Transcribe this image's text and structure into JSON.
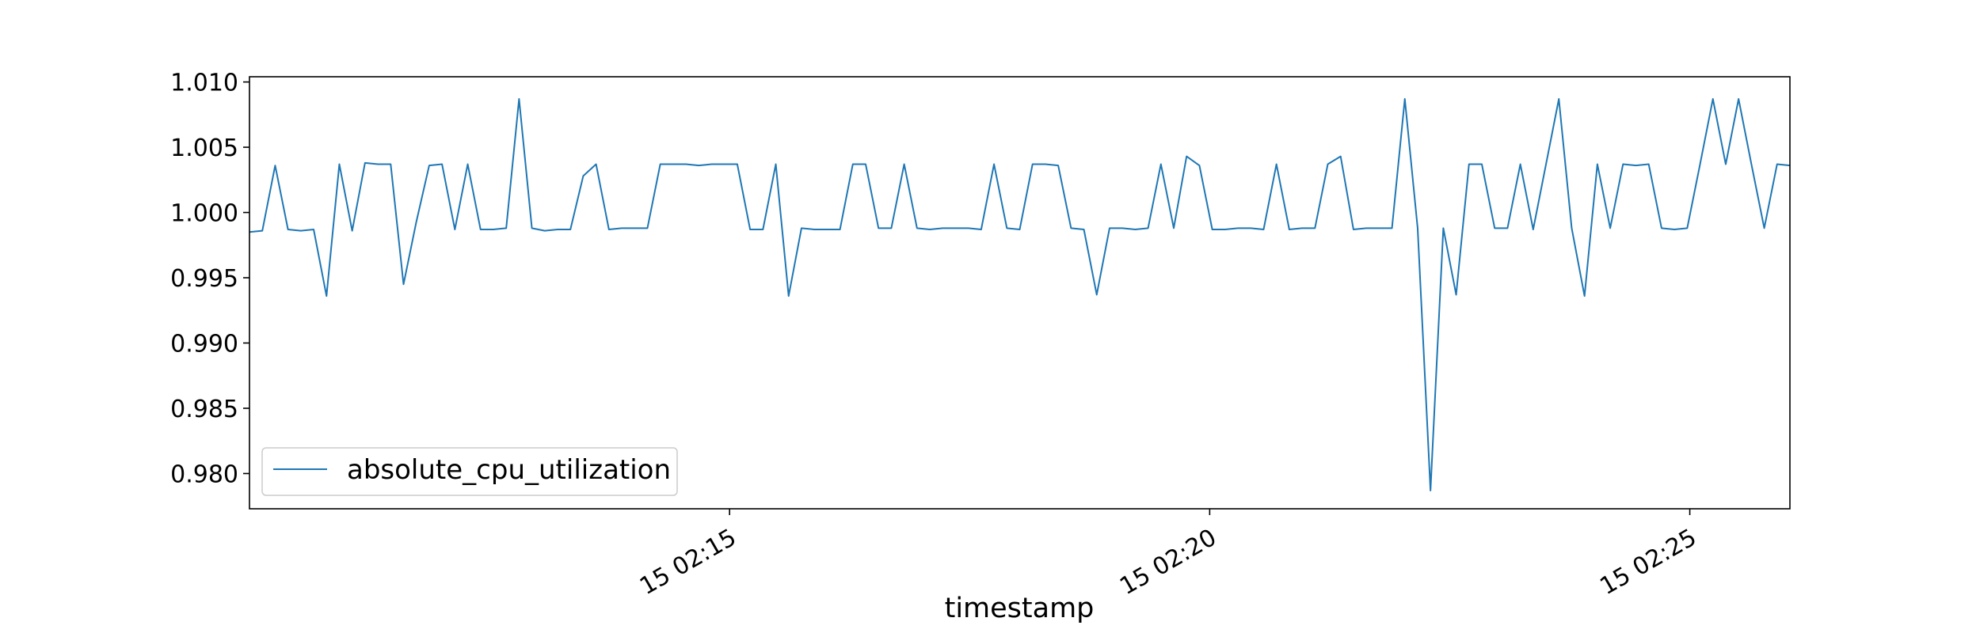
{
  "chart_data": {
    "type": "line",
    "title": "",
    "xlabel": "timestamp",
    "ylabel": "",
    "x_tick_labels": [
      "15 02:15",
      "15 02:20",
      "15 02:25"
    ],
    "x_tick_values": [
      9.35,
      18.7,
      28.05
    ],
    "y_ticks": [
      0.98,
      0.985,
      0.99,
      0.995,
      1.0,
      1.005,
      1.01
    ],
    "y_tick_labels": [
      "0.980",
      "0.985",
      "0.990",
      "0.995",
      "1.000",
      "1.005",
      "1.010"
    ],
    "ylim": [
      0.9773,
      1.0104
    ],
    "xlim": [
      0,
      30
    ],
    "grid": false,
    "legend_position": "lower left",
    "colors": {
      "line": "#1f77b4",
      "axes": "#000000",
      "legend_border": "#cccccc"
    },
    "series": [
      {
        "name": "absolute_cpu_utilization",
        "values": [
          0.9985,
          0.9986,
          1.0036,
          0.9987,
          0.9986,
          0.9987,
          0.9936,
          1.0037,
          0.9986,
          1.0038,
          1.0037,
          1.0037,
          0.9945,
          0.9993,
          1.0036,
          1.0037,
          0.9987,
          1.0037,
          0.9987,
          0.9987,
          0.9988,
          1.0087,
          0.9988,
          0.9986,
          0.9987,
          0.9987,
          1.0028,
          1.0037,
          0.9987,
          0.9988,
          0.9988,
          0.9988,
          1.0037,
          1.0037,
          1.0037,
          1.0036,
          1.0037,
          1.0037,
          1.0037,
          0.9987,
          0.9987,
          1.0037,
          0.9936,
          0.9988,
          0.9987,
          0.9987,
          0.9987,
          1.0037,
          1.0037,
          0.9988,
          0.9988,
          1.0037,
          0.9988,
          0.9987,
          0.9988,
          0.9988,
          0.9988,
          0.9987,
          1.0037,
          0.9988,
          0.9987,
          1.0037,
          1.0037,
          1.0036,
          0.9988,
          0.9987,
          0.9937,
          0.9988,
          0.9988,
          0.9987,
          0.9988,
          1.0037,
          0.9988,
          1.0043,
          1.0036,
          0.9987,
          0.9987,
          0.9988,
          0.9988,
          0.9987,
          1.0037,
          0.9987,
          0.9988,
          0.9988,
          1.0037,
          1.0043,
          0.9987,
          0.9988,
          0.9988,
          0.9988,
          1.0087,
          0.9988,
          0.9787,
          0.9988,
          0.9937,
          1.0037,
          1.0037,
          0.9988,
          0.9988,
          1.0037,
          0.9987,
          1.0037,
          1.0087,
          0.9988,
          0.9936,
          1.0037,
          0.9988,
          1.0037,
          1.0036,
          1.0037,
          0.9988,
          0.9987,
          0.9988,
          1.0037,
          1.0087,
          1.0037,
          1.0087,
          1.0037,
          0.9988,
          1.0037,
          1.0036
        ]
      }
    ]
  }
}
